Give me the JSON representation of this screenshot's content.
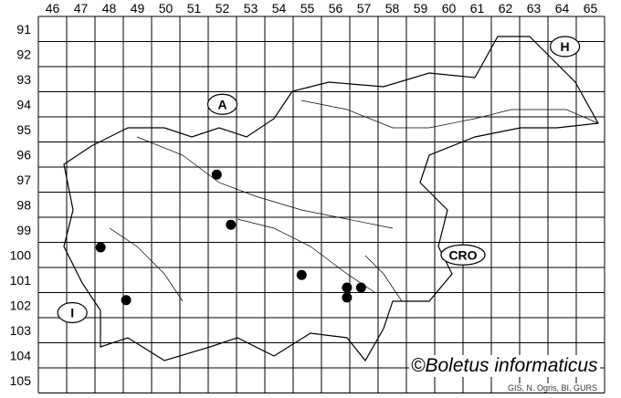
{
  "map": {
    "columns": [
      "46",
      "47",
      "48",
      "49",
      "50",
      "51",
      "52",
      "53",
      "54",
      "55",
      "56",
      "57",
      "58",
      "59",
      "60",
      "61",
      "62",
      "63",
      "64",
      "65"
    ],
    "rows": [
      "91",
      "92",
      "93",
      "94",
      "95",
      "96",
      "97",
      "98",
      "99",
      "100",
      "101",
      "102",
      "103",
      "104",
      "105"
    ],
    "country_labels": [
      {
        "text": "A",
        "col": 52.5,
        "row": 94.5
      },
      {
        "text": "H",
        "col": 64.6,
        "row": 92.2
      },
      {
        "text": "I",
        "col": 47.2,
        "row": 102.8
      },
      {
        "text": "CRO",
        "col": 61.0,
        "row": 100.5
      }
    ],
    "records": [
      {
        "col": 52.3,
        "row": 97.3
      },
      {
        "col": 52.8,
        "row": 99.3
      },
      {
        "col": 48.2,
        "row": 100.2
      },
      {
        "col": 55.3,
        "row": 101.3
      },
      {
        "col": 56.9,
        "row": 101.8
      },
      {
        "col": 57.4,
        "row": 101.8
      },
      {
        "col": 56.9,
        "row": 102.2
      },
      {
        "col": 49.1,
        "row": 102.3
      }
    ],
    "record_color": "#000000"
  },
  "credit": "©Boletus informaticus",
  "source": "GIS, N. Ogris, BI, GURS"
}
